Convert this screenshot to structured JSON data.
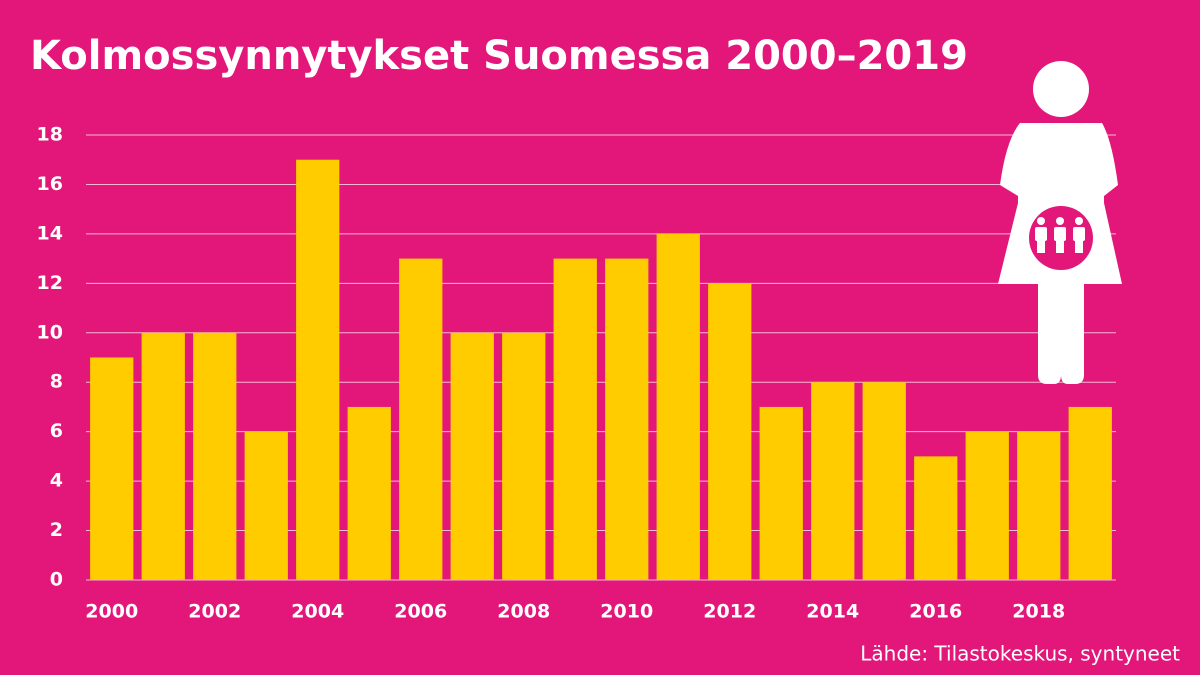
{
  "chart_data": {
    "type": "bar",
    "title": "Kolmossynnytykset Suomessa 2000–2019",
    "source": "Lähde: Tilastokeskus, syntyneet",
    "categories": [
      "2000",
      null,
      "2002",
      null,
      "2004",
      null,
      "2006",
      null,
      "2008",
      null,
      "2010",
      null,
      "2012",
      null,
      "2014",
      null,
      "2016",
      null,
      "2018",
      null
    ],
    "values": [
      9,
      10,
      10,
      6,
      17,
      7,
      13,
      10,
      10,
      13,
      13,
      14,
      12,
      7,
      8,
      8,
      5,
      6,
      6,
      7
    ],
    "color": "#ffcc00",
    "ylim": [
      0,
      18
    ],
    "yticks": [
      0,
      2,
      4,
      6,
      8,
      10,
      12,
      14,
      16,
      18
    ],
    "grid": true
  }
}
